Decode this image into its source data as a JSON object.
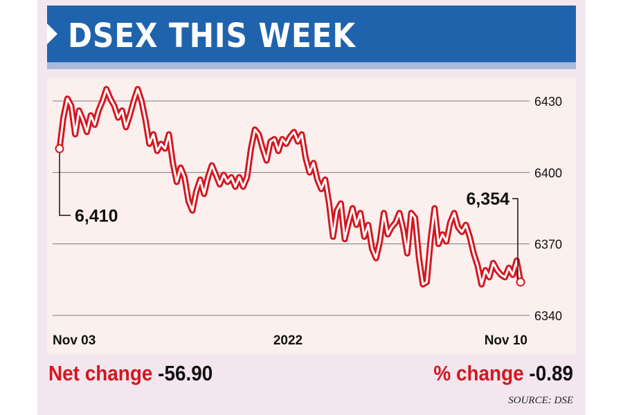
{
  "header": {
    "title": "DSEX THIS WEEK"
  },
  "chart_data": {
    "type": "line",
    "title": "DSEX THIS WEEK",
    "xlabel": "",
    "ylabel": "",
    "x_ticks": [
      "Nov 03",
      "2022",
      "Nov 10"
    ],
    "y_ticks": [
      6430,
      6400,
      6370,
      6340
    ],
    "ylim": [
      6337,
      6440
    ],
    "grid": "horizontal",
    "line_color": "#d4161f",
    "series": [
      {
        "values": [
          6410,
          6423,
          6431,
          6428,
          6416,
          6426,
          6422,
          6417,
          6424,
          6420,
          6426,
          6430,
          6435,
          6431,
          6428,
          6423,
          6426,
          6419,
          6424,
          6430,
          6435,
          6430,
          6422,
          6412,
          6416,
          6409,
          6412,
          6410,
          6416,
          6404,
          6396,
          6402,
          6398,
          6388,
          6384,
          6392,
          6397,
          6391,
          6398,
          6403,
          6399,
          6395,
          6399,
          6396,
          6398,
          6394,
          6398,
          6394,
          6398,
          6410,
          6418,
          6416,
          6410,
          6405,
          6413,
          6414,
          6409,
          6414,
          6412,
          6415,
          6417,
          6413,
          6416,
          6406,
          6400,
          6404,
          6397,
          6393,
          6397,
          6387,
          6373,
          6384,
          6387,
          6372,
          6379,
          6385,
          6378,
          6383,
          6373,
          6378,
          6368,
          6364,
          6371,
          6383,
          6374,
          6377,
          6379,
          6383,
          6376,
          6366,
          6383,
          6381,
          6364,
          6353,
          6354,
          6372,
          6385,
          6370,
          6374,
          6371,
          6379,
          6383,
          6377,
          6375,
          6378,
          6373,
          6366,
          6361,
          6353,
          6359,
          6356,
          6362,
          6359,
          6357,
          6356,
          6360,
          6357,
          6363,
          6354
        ]
      }
    ],
    "annotations": [
      {
        "text": "6,410",
        "x": "Nov 03",
        "y": 6410
      },
      {
        "text": "6,354",
        "x": "Nov 10",
        "y": 6354
      }
    ]
  },
  "footer": {
    "net_change_label": "Net change",
    "net_change_value": "-56.90",
    "pct_change_label": "% change",
    "pct_change_value": "-0.89",
    "source": "SOURCE: DSE"
  }
}
